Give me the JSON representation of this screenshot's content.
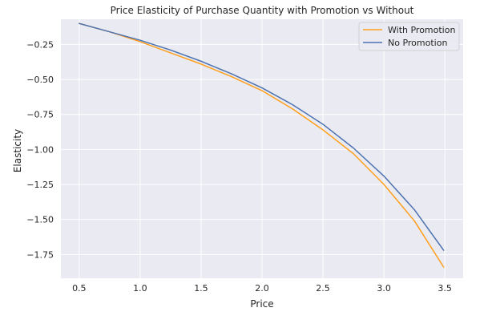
{
  "chart_data": {
    "type": "line",
    "title": "Price Elasticity of Purchase Quantity with Promotion vs Without",
    "xlabel": "Price",
    "ylabel": "Elasticity",
    "xlim": [
      0.35,
      3.65
    ],
    "ylim": [
      -1.92,
      -0.07
    ],
    "x_ticks": [
      0.5,
      1.0,
      1.5,
      2.0,
      2.5,
      3.0,
      3.5
    ],
    "x_tick_labels": [
      "0.5",
      "1.0",
      "1.5",
      "2.0",
      "2.5",
      "3.0",
      "3.5"
    ],
    "y_ticks": [
      -0.25,
      -0.5,
      -0.75,
      -1.0,
      -1.25,
      -1.5,
      -1.75
    ],
    "y_tick_labels": [
      "−0.25",
      "−0.50",
      "−0.75",
      "−1.00",
      "−1.25",
      "−1.50",
      "−1.75"
    ],
    "grid": true,
    "legend_position": "top-right",
    "x": [
      0.5,
      0.75,
      1.0,
      1.25,
      1.5,
      1.75,
      2.0,
      2.25,
      2.5,
      2.75,
      3.0,
      3.25,
      3.49
    ],
    "series": [
      {
        "name": "With Promotion",
        "color": "#ff9f1c",
        "values": [
          -0.1,
          -0.16,
          -0.23,
          -0.31,
          -0.39,
          -0.48,
          -0.58,
          -0.71,
          -0.86,
          -1.03,
          -1.25,
          -1.51,
          -1.84
        ]
      },
      {
        "name": "No Promotion",
        "color": "#4c72b0",
        "values": [
          -0.1,
          -0.16,
          -0.22,
          -0.29,
          -0.37,
          -0.46,
          -0.56,
          -0.68,
          -0.82,
          -0.99,
          -1.19,
          -1.43,
          -1.72
        ]
      }
    ]
  }
}
